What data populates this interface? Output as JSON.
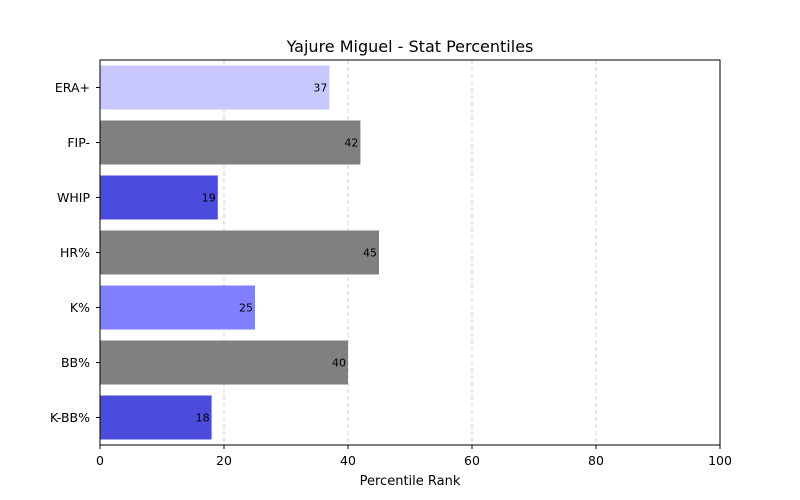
{
  "chart_data": {
    "type": "bar",
    "orientation": "horizontal",
    "title": "Yajure Miguel - Stat Percentiles",
    "xlabel": "Percentile Rank",
    "ylabel": "",
    "xlim": [
      0,
      100
    ],
    "xticks": [
      "0",
      "20",
      "40",
      "60",
      "80",
      "100"
    ],
    "grid": "x-dashed",
    "categories": [
      "ERA+",
      "FIP-",
      "WHIP",
      "HR%",
      "K%",
      "BB%",
      "K-BB%"
    ],
    "values": [
      37,
      42,
      19,
      45,
      25,
      40,
      18
    ],
    "bar_colors": [
      "#c8c8ff",
      "#808080",
      "#4b4bdc",
      "#808080",
      "#8080ff",
      "#808080",
      "#4b4bdc"
    ],
    "data_labels": [
      "37",
      "42",
      "19",
      "45",
      "25",
      "40",
      "18"
    ]
  }
}
